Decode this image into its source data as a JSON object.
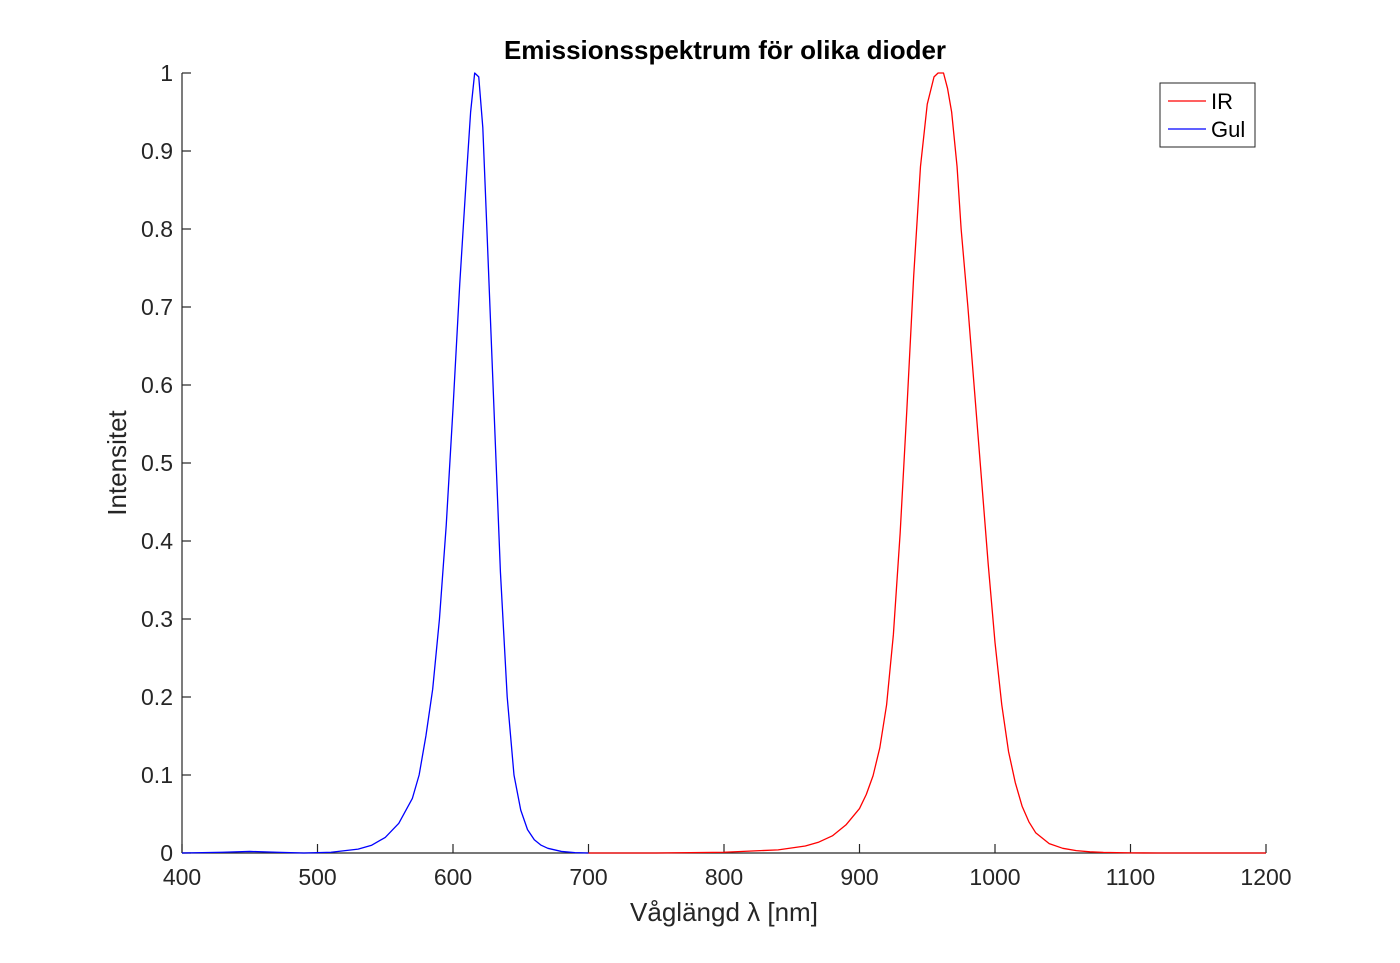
{
  "chart_data": {
    "type": "line",
    "title": "Emissionsspektrum för olika dioder",
    "xlabel": "Våglängd λ [nm]",
    "ylabel": "Intensitet",
    "xlim": [
      400,
      1200
    ],
    "ylim": [
      0,
      1
    ],
    "xticks": [
      "400",
      "500",
      "600",
      "700",
      "800",
      "900",
      "1000",
      "1100",
      "1200"
    ],
    "yticks": [
      "0",
      "0.1",
      "0.2",
      "0.3",
      "0.4",
      "0.5",
      "0.6",
      "0.7",
      "0.8",
      "0.9",
      "1"
    ],
    "grid": false,
    "legend_position": "top-right",
    "series": [
      {
        "name": "IR",
        "color": "#ff0000",
        "x": [
          700,
          750,
          800,
          840,
          860,
          870,
          880,
          890,
          900,
          905,
          910,
          915,
          920,
          925,
          930,
          935,
          940,
          945,
          950,
          955,
          958,
          962,
          965,
          968,
          972,
          975,
          980,
          985,
          990,
          995,
          1000,
          1005,
          1010,
          1015,
          1020,
          1025,
          1030,
          1040,
          1050,
          1060,
          1070,
          1080,
          1100,
          1120,
          1200
        ],
        "y": [
          0,
          0,
          0.001,
          0.004,
          0.009,
          0.014,
          0.022,
          0.036,
          0.057,
          0.075,
          0.099,
          0.135,
          0.19,
          0.28,
          0.41,
          0.57,
          0.74,
          0.88,
          0.96,
          0.995,
          1.0,
          1.0,
          0.98,
          0.95,
          0.88,
          0.8,
          0.7,
          0.59,
          0.48,
          0.37,
          0.27,
          0.19,
          0.13,
          0.09,
          0.06,
          0.04,
          0.026,
          0.012,
          0.006,
          0.003,
          0.0015,
          0.0008,
          0.0002,
          0,
          0
        ]
      },
      {
        "name": "Gul",
        "color": "#0000ff",
        "x": [
          400,
          430,
          450,
          470,
          490,
          510,
          530,
          540,
          550,
          560,
          570,
          575,
          580,
          585,
          590,
          595,
          600,
          605,
          610,
          613,
          616,
          619,
          622,
          625,
          630,
          635,
          640,
          645,
          650,
          655,
          660,
          665,
          670,
          680,
          690,
          700
        ],
        "y": [
          0,
          0.001,
          0.002,
          0.001,
          0,
          0.001,
          0.005,
          0.01,
          0.02,
          0.038,
          0.07,
          0.1,
          0.15,
          0.21,
          0.3,
          0.42,
          0.57,
          0.73,
          0.87,
          0.95,
          1.0,
          0.995,
          0.93,
          0.8,
          0.58,
          0.36,
          0.2,
          0.1,
          0.055,
          0.03,
          0.017,
          0.01,
          0.006,
          0.002,
          0.0005,
          0
        ]
      }
    ]
  }
}
